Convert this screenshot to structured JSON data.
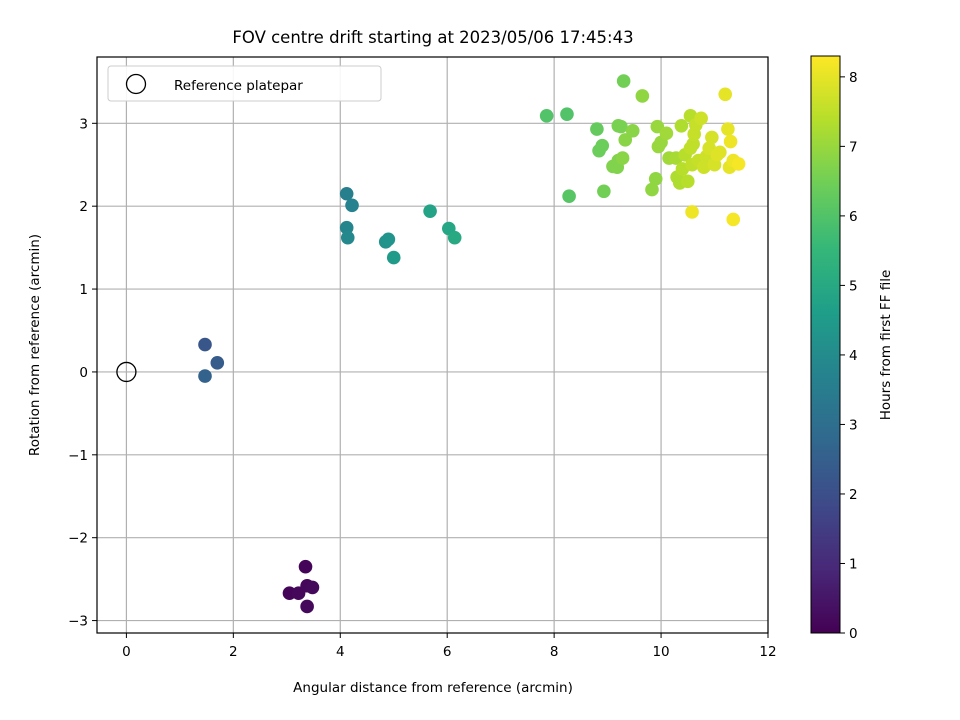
{
  "chart_data": {
    "type": "scatter",
    "title": "FOV centre drift starting at 2023/05/06 17:45:43",
    "xlabel": "Angular distance from reference (arcmin)",
    "ylabel": "Rotation from reference (arcmin)",
    "xlim": [
      -0.55,
      12
    ],
    "ylim": [
      -3.15,
      3.8
    ],
    "xticks": [
      0,
      2,
      4,
      6,
      8,
      10,
      12
    ],
    "yticks": [
      -3,
      -2,
      -1,
      0,
      1,
      2,
      3
    ],
    "xtick_labels": [
      "0",
      "2",
      "4",
      "6",
      "8",
      "10",
      "12"
    ],
    "ytick_labels": [
      "−3",
      "−2",
      "−1",
      "0",
      "1",
      "2",
      "3"
    ],
    "grid": true,
    "legend": {
      "position": "top-left",
      "entries": [
        "Reference platepar"
      ]
    },
    "reference_point": {
      "x": 0,
      "y": 0,
      "marker": "open-circle"
    },
    "colorbar": {
      "label": "Hours from first FF file",
      "colormap": "viridis",
      "range": [
        0,
        8.3
      ],
      "ticks": [
        0,
        1,
        2,
        3,
        4,
        5,
        6,
        7,
        8
      ],
      "tick_labels": [
        "0",
        "1",
        "2",
        "3",
        "4",
        "5",
        "6",
        "7",
        "8"
      ]
    },
    "colormap_stops": [
      "#440154",
      "#482878",
      "#3e4a89",
      "#31688e",
      "#26828e",
      "#1f9e89",
      "#35b779",
      "#6ece58",
      "#b5de2b",
      "#fde725"
    ],
    "points": [
      {
        "x": 3.35,
        "y": -2.35,
        "c": 0.1
      },
      {
        "x": 3.05,
        "y": -2.67,
        "c": 0.1
      },
      {
        "x": 3.22,
        "y": -2.67,
        "c": 0.15
      },
      {
        "x": 3.38,
        "y": -2.58,
        "c": 0.15
      },
      {
        "x": 3.48,
        "y": -2.6,
        "c": 0.2
      },
      {
        "x": 3.38,
        "y": -2.83,
        "c": 0.2
      },
      {
        "x": 1.47,
        "y": 0.33,
        "c": 2.2
      },
      {
        "x": 1.7,
        "y": 0.11,
        "c": 2.4
      },
      {
        "x": 1.47,
        "y": -0.05,
        "c": 2.6
      },
      {
        "x": 4.12,
        "y": 2.15,
        "c": 3.6
      },
      {
        "x": 4.22,
        "y": 2.01,
        "c": 3.7
      },
      {
        "x": 4.12,
        "y": 1.74,
        "c": 3.8
      },
      {
        "x": 4.14,
        "y": 1.62,
        "c": 3.9
      },
      {
        "x": 4.85,
        "y": 1.57,
        "c": 4.2
      },
      {
        "x": 4.9,
        "y": 1.6,
        "c": 4.3
      },
      {
        "x": 5.0,
        "y": 1.38,
        "c": 4.5
      },
      {
        "x": 5.68,
        "y": 1.94,
        "c": 4.8
      },
      {
        "x": 6.03,
        "y": 1.73,
        "c": 4.9
      },
      {
        "x": 6.14,
        "y": 1.62,
        "c": 5.0
      },
      {
        "x": 7.86,
        "y": 3.09,
        "c": 6.0
      },
      {
        "x": 8.24,
        "y": 3.11,
        "c": 6.0
      },
      {
        "x": 8.28,
        "y": 2.12,
        "c": 6.1
      },
      {
        "x": 8.8,
        "y": 2.93,
        "c": 6.3
      },
      {
        "x": 8.84,
        "y": 2.67,
        "c": 6.4
      },
      {
        "x": 8.9,
        "y": 2.73,
        "c": 6.4
      },
      {
        "x": 8.93,
        "y": 2.18,
        "c": 6.5
      },
      {
        "x": 9.3,
        "y": 3.51,
        "c": 6.5
      },
      {
        "x": 9.2,
        "y": 2.97,
        "c": 6.6
      },
      {
        "x": 9.25,
        "y": 2.96,
        "c": 6.6
      },
      {
        "x": 9.1,
        "y": 2.48,
        "c": 6.7
      },
      {
        "x": 9.18,
        "y": 2.47,
        "c": 6.7
      },
      {
        "x": 9.2,
        "y": 2.55,
        "c": 6.7
      },
      {
        "x": 9.28,
        "y": 2.58,
        "c": 6.8
      },
      {
        "x": 9.33,
        "y": 2.8,
        "c": 6.8
      },
      {
        "x": 9.47,
        "y": 2.91,
        "c": 6.8
      },
      {
        "x": 9.65,
        "y": 3.33,
        "c": 6.9
      },
      {
        "x": 9.83,
        "y": 2.2,
        "c": 6.9
      },
      {
        "x": 9.9,
        "y": 2.33,
        "c": 6.9
      },
      {
        "x": 9.93,
        "y": 2.96,
        "c": 7.0
      },
      {
        "x": 9.95,
        "y": 2.72,
        "c": 7.0
      },
      {
        "x": 10.0,
        "y": 2.77,
        "c": 7.0
      },
      {
        "x": 10.1,
        "y": 2.88,
        "c": 7.1
      },
      {
        "x": 10.15,
        "y": 2.58,
        "c": 7.1
      },
      {
        "x": 10.28,
        "y": 2.58,
        "c": 7.2
      },
      {
        "x": 10.3,
        "y": 2.35,
        "c": 7.3
      },
      {
        "x": 10.35,
        "y": 2.28,
        "c": 7.3
      },
      {
        "x": 10.38,
        "y": 2.97,
        "c": 7.3
      },
      {
        "x": 10.4,
        "y": 2.45,
        "c": 7.4
      },
      {
        "x": 10.45,
        "y": 2.62,
        "c": 7.4
      },
      {
        "x": 10.5,
        "y": 2.3,
        "c": 7.4
      },
      {
        "x": 10.55,
        "y": 3.09,
        "c": 7.4
      },
      {
        "x": 10.55,
        "y": 2.7,
        "c": 7.5
      },
      {
        "x": 10.58,
        "y": 2.5,
        "c": 7.5
      },
      {
        "x": 10.6,
        "y": 2.75,
        "c": 7.5
      },
      {
        "x": 10.62,
        "y": 2.87,
        "c": 7.6
      },
      {
        "x": 10.65,
        "y": 2.98,
        "c": 7.6
      },
      {
        "x": 10.7,
        "y": 2.55,
        "c": 7.6
      },
      {
        "x": 10.75,
        "y": 3.06,
        "c": 7.7
      },
      {
        "x": 10.8,
        "y": 2.47,
        "c": 7.7
      },
      {
        "x": 10.85,
        "y": 2.6,
        "c": 7.7
      },
      {
        "x": 10.9,
        "y": 2.7,
        "c": 7.8
      },
      {
        "x": 10.95,
        "y": 2.83,
        "c": 7.8
      },
      {
        "x": 11.0,
        "y": 2.5,
        "c": 7.8
      },
      {
        "x": 11.05,
        "y": 2.62,
        "c": 7.9
      },
      {
        "x": 11.1,
        "y": 2.65,
        "c": 7.9
      },
      {
        "x": 11.2,
        "y": 3.35,
        "c": 8.0
      },
      {
        "x": 11.25,
        "y": 2.93,
        "c": 8.0
      },
      {
        "x": 11.28,
        "y": 2.47,
        "c": 8.0
      },
      {
        "x": 11.3,
        "y": 2.78,
        "c": 8.1
      },
      {
        "x": 11.35,
        "y": 2.55,
        "c": 8.1
      },
      {
        "x": 11.45,
        "y": 2.51,
        "c": 8.2
      },
      {
        "x": 10.58,
        "y": 1.93,
        "c": 8.1
      },
      {
        "x": 11.35,
        "y": 1.84,
        "c": 8.2
      }
    ]
  }
}
